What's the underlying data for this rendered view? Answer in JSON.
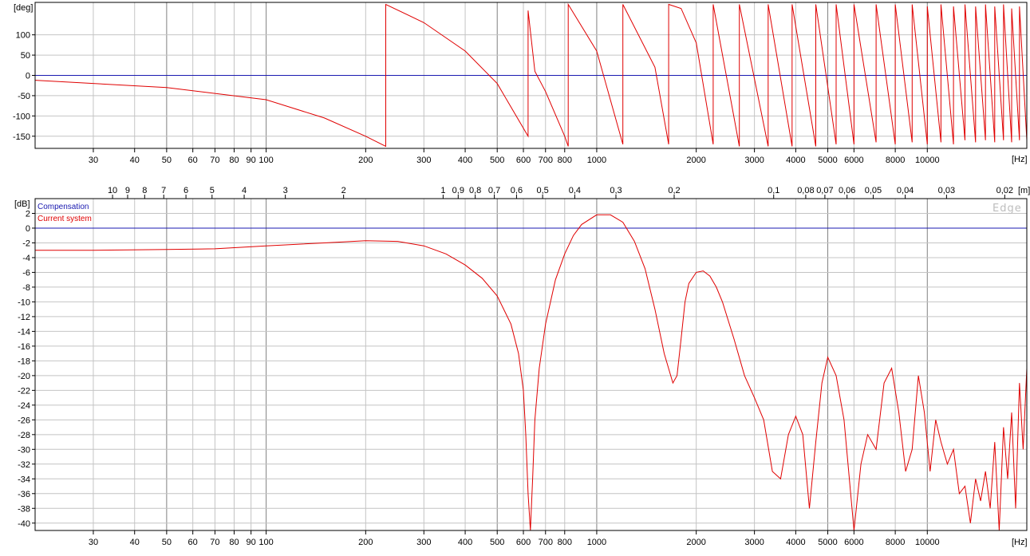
{
  "chart_data": [
    {
      "type": "line",
      "name": "phase",
      "ylabel": "[deg]",
      "xlabel": "[Hz]",
      "x_scale": "log",
      "xlim": [
        20,
        20000
      ],
      "ylim": [
        -180,
        180
      ],
      "yticks": [
        100,
        50,
        0,
        -50,
        -100,
        -150
      ],
      "xticks": [
        30,
        40,
        50,
        60,
        70,
        80,
        90,
        100,
        200,
        300,
        400,
        500,
        600,
        700,
        800,
        1000,
        2000,
        3000,
        4000,
        5000,
        6000,
        8000,
        10000
      ],
      "xtick_labels": [
        "30",
        "40",
        "50",
        "60",
        "70",
        "80",
        "90",
        "100",
        "200",
        "300",
        "400",
        "500",
        "600",
        "700",
        "800",
        "1000",
        "2000",
        "3000",
        "4000",
        "5000",
        "6000",
        "8000",
        "10000"
      ],
      "grid": true,
      "series": [
        {
          "color": "#1a1ab0",
          "x": [
            20,
            20000
          ],
          "y": [
            0,
            0
          ]
        },
        {
          "color": "#e00000",
          "x": [
            20,
            50,
            100,
            150,
            200,
            230,
            230,
            300,
            400,
            500,
            620,
            620,
            650,
            700,
            800,
            820,
            820,
            1000,
            1200,
            1200,
            1500,
            1650,
            1650,
            1800,
            2000,
            2250,
            2250,
            2700,
            2700,
            3300,
            3300,
            3900,
            3900,
            4600,
            4600,
            5300,
            5300,
            6000,
            6000,
            7000,
            7000,
            8000,
            8000,
            9000,
            9000,
            10000,
            10000,
            11000,
            11000,
            12000,
            12000,
            13000,
            13000,
            14000,
            14000,
            15000,
            15000,
            16000,
            16000,
            17000,
            17000,
            18000,
            18000,
            19000,
            19000,
            20000
          ],
          "y": [
            -12,
            -30,
            -60,
            -105,
            -150,
            -175,
            175,
            130,
            60,
            -20,
            -150,
            160,
            10,
            -40,
            -150,
            -175,
            175,
            60,
            -170,
            175,
            20,
            -170,
            175,
            165,
            80,
            -170,
            175,
            -175,
            175,
            -175,
            175,
            -175,
            175,
            -175,
            175,
            -170,
            175,
            -170,
            175,
            -165,
            175,
            -170,
            175,
            -165,
            175,
            -170,
            170,
            -165,
            175,
            -170,
            170,
            -160,
            175,
            -165,
            170,
            -160,
            175,
            -165,
            170,
            -160,
            175,
            -165,
            165,
            -160,
            170,
            -160
          ]
        }
      ]
    },
    {
      "type": "line",
      "name": "magnitude",
      "ylabel": "[dB]",
      "xlabel": "[Hz]",
      "x_scale": "log",
      "xlim": [
        20,
        20000
      ],
      "ylim": [
        -41,
        4
      ],
      "yticks": [
        2,
        0,
        -2,
        -4,
        -6,
        -8,
        -10,
        -12,
        -14,
        -16,
        -18,
        -20,
        -22,
        -24,
        -26,
        -28,
        -30,
        -32,
        -34,
        -36,
        -38,
        -40
      ],
      "xticks": [
        30,
        40,
        50,
        60,
        70,
        80,
        90,
        100,
        200,
        300,
        400,
        500,
        600,
        700,
        800,
        1000,
        2000,
        3000,
        4000,
        5000,
        6000,
        8000,
        10000
      ],
      "xtick_labels": [
        "30",
        "40",
        "50",
        "60",
        "70",
        "80",
        "90",
        "100",
        "200",
        "300",
        "400",
        "500",
        "600",
        "700",
        "800",
        "1000",
        "2000",
        "3000",
        "4000",
        "5000",
        "6000",
        "8000",
        "10000"
      ],
      "secondary_x_label": "[m]",
      "secondary_x_ticks": [
        {
          "label": "10",
          "freq": 34.3
        },
        {
          "label": "9",
          "freq": 38.1
        },
        {
          "label": "8",
          "freq": 42.9
        },
        {
          "label": "7",
          "freq": 49
        },
        {
          "label": "6",
          "freq": 57.2
        },
        {
          "label": "5",
          "freq": 68.6
        },
        {
          "label": "4",
          "freq": 85.8
        },
        {
          "label": "3",
          "freq": 114.3
        },
        {
          "label": "2",
          "freq": 171.5
        },
        {
          "label": "1",
          "freq": 343
        },
        {
          "label": "0,9",
          "freq": 381
        },
        {
          "label": "0,8",
          "freq": 429
        },
        {
          "label": "0,7",
          "freq": 490
        },
        {
          "label": "0,6",
          "freq": 572
        },
        {
          "label": "0,5",
          "freq": 686
        },
        {
          "label": "0,4",
          "freq": 858
        },
        {
          "label": "0,3",
          "freq": 1143
        },
        {
          "label": "0,2",
          "freq": 1715
        },
        {
          "label": "0,1",
          "freq": 3430
        },
        {
          "label": "0,08",
          "freq": 4288
        },
        {
          "label": "0,07",
          "freq": 4900
        },
        {
          "label": "0,06",
          "freq": 5717
        },
        {
          "label": "0,05",
          "freq": 6860
        },
        {
          "label": "0,04",
          "freq": 8575
        },
        {
          "label": "0,03",
          "freq": 11433
        },
        {
          "label": "0,02",
          "freq": 17150
        }
      ],
      "legend": [
        {
          "label": "Compensation",
          "color": "#1a1ab0"
        },
        {
          "label": "Current system",
          "color": "#e00000"
        }
      ],
      "legend_position": "top-left",
      "watermark": "Edge",
      "grid": true,
      "series": [
        {
          "color": "#1a1ab0",
          "x": [
            20,
            20000
          ],
          "y": [
            0,
            0
          ]
        },
        {
          "color": "#e00000",
          "x": [
            20,
            30,
            50,
            70,
            100,
            150,
            200,
            250,
            300,
            350,
            400,
            450,
            500,
            550,
            580,
            600,
            610,
            620,
            630,
            640,
            650,
            670,
            700,
            750,
            800,
            850,
            900,
            1000,
            1100,
            1200,
            1300,
            1400,
            1500,
            1600,
            1700,
            1750,
            1800,
            1850,
            1900,
            2000,
            2100,
            2200,
            2300,
            2400,
            2600,
            2800,
            3000,
            3200,
            3400,
            3600,
            3800,
            4000,
            4200,
            4400,
            4600,
            4800,
            5000,
            5300,
            5600,
            6000,
            6300,
            6600,
            7000,
            7400,
            7800,
            8200,
            8600,
            9000,
            9400,
            9800,
            10200,
            10600,
            11000,
            11500,
            12000,
            12500,
            13000,
            13500,
            14000,
            14500,
            15000,
            15500,
            16000,
            16500,
            17000,
            17500,
            18000,
            18500,
            19000,
            19500,
            20000
          ],
          "y": [
            -3,
            -3,
            -2.9,
            -2.8,
            -2.4,
            -2,
            -1.7,
            -1.8,
            -2.4,
            -3.5,
            -5,
            -6.8,
            -9.2,
            -13,
            -17,
            -22,
            -28,
            -36,
            -41,
            -34,
            -26,
            -19,
            -13,
            -7,
            -3.5,
            -1,
            0.5,
            1.8,
            1.8,
            0.8,
            -1.8,
            -5.5,
            -11,
            -17,
            -21,
            -20,
            -15,
            -10,
            -7.5,
            -6,
            -5.8,
            -6.5,
            -8,
            -10,
            -15,
            -20,
            -23,
            -26,
            -33,
            -34,
            -28,
            -25.5,
            -28,
            -38,
            -29,
            -21,
            -17.5,
            -20,
            -26,
            -41,
            -32,
            -28,
            -30,
            -21,
            -19,
            -25,
            -33,
            -30,
            -20,
            -25,
            -33,
            -26,
            -29,
            -32,
            -30,
            -36,
            -35,
            -40,
            -34,
            -37,
            -33,
            -38,
            -29,
            -41,
            -27,
            -34,
            -25,
            -38,
            -21,
            -30,
            -19
          ]
        }
      ]
    }
  ]
}
